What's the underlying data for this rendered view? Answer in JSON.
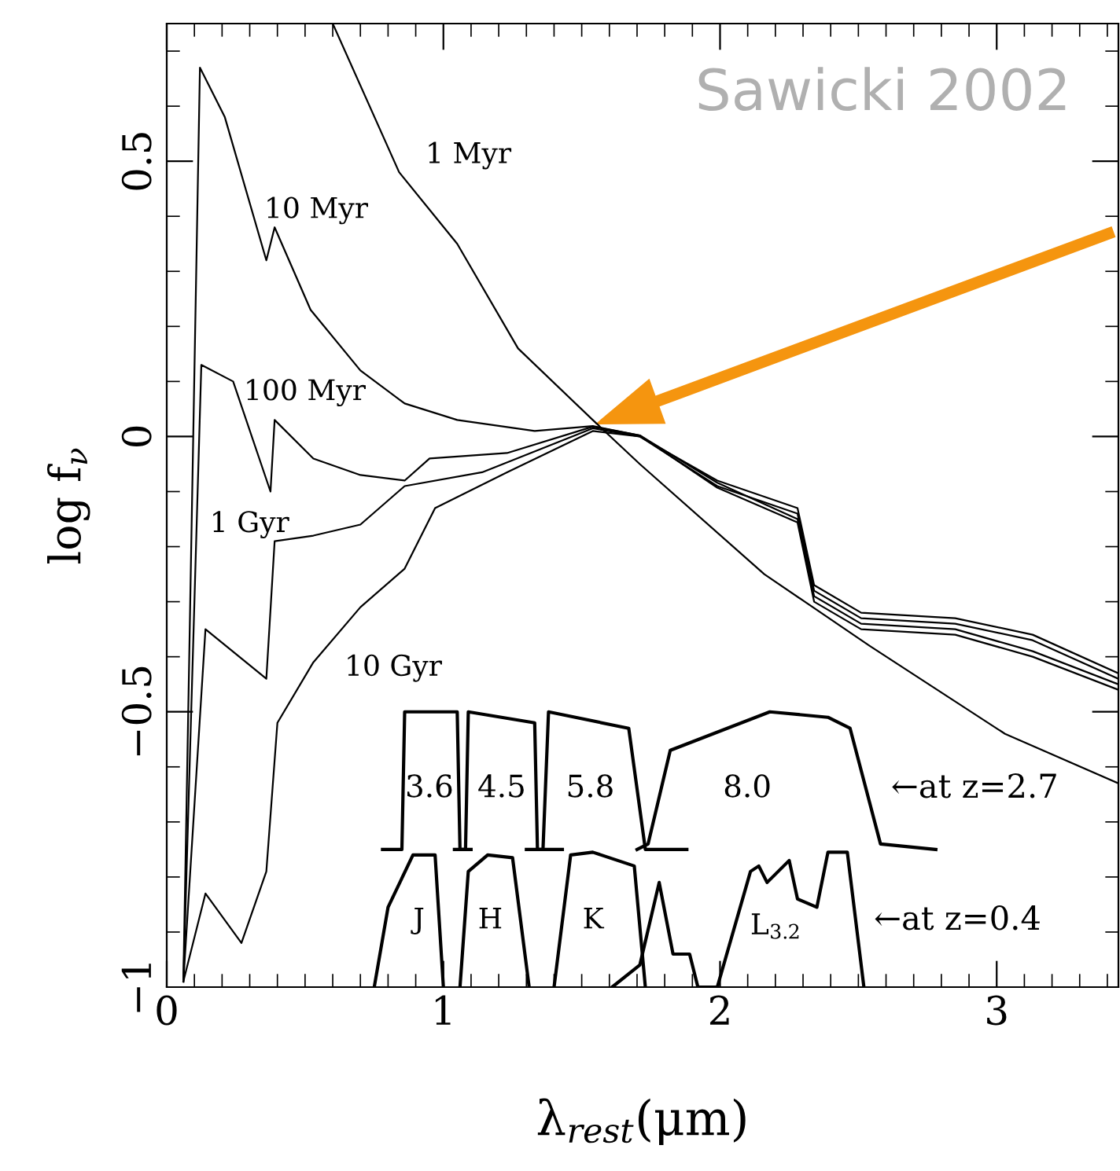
{
  "chart_data": {
    "type": "line",
    "xlabel": "λ$_{rest}$(μm)",
    "ylabel": "log f$_{ν}$",
    "xlim": [
      0,
      3.44
    ],
    "ylim": [
      -1,
      0.75
    ],
    "xticks": [
      0,
      1,
      2,
      3
    ],
    "yticks": [
      {
        "value": -1,
        "label": "−1"
      },
      {
        "value": -0.5,
        "label": "−0.5"
      },
      0,
      0.5
    ],
    "grid": false,
    "marker": "none",
    "line_style": "solid",
    "series": [
      {
        "color": "#000000",
        "x": [
          0.6,
          0.84,
          1.05,
          1.27,
          1.54,
          1.71,
          2.16,
          2.54,
          3.03,
          3.44
        ],
        "values": [
          0.75,
          0.48,
          0.35,
          0.16,
          0.03,
          -0.05,
          -0.25,
          -0.38,
          -0.54,
          -0.63
        ]
      },
      {
        "color": "#000000",
        "x": [
          0.06,
          0.12,
          0.21,
          0.36,
          0.39,
          0.52,
          0.7,
          0.86,
          1.05,
          1.33,
          1.54,
          1.71,
          1.99,
          2.28,
          2.34,
          2.51,
          2.85,
          3.13,
          3.44
        ],
        "values": [
          -0.99,
          0.67,
          0.58,
          0.32,
          0.38,
          0.23,
          0.12,
          0.06,
          0.03,
          0.01,
          0.019,
          0.002,
          -0.093,
          -0.156,
          -0.3,
          -0.35,
          -0.36,
          -0.4,
          -0.46
        ]
      },
      {
        "color": "#000000",
        "x": [
          0.06,
          0.125,
          0.24,
          0.375,
          0.39,
          0.53,
          0.7,
          0.86,
          0.95,
          1.23,
          1.54,
          1.71,
          1.99,
          2.28,
          2.34,
          2.51,
          2.85,
          3.13,
          3.44
        ],
        "values": [
          -0.99,
          0.13,
          0.1,
          -0.1,
          0.03,
          -0.04,
          -0.07,
          -0.08,
          -0.04,
          -0.03,
          0.018,
          0.002,
          -0.084,
          -0.15,
          -0.29,
          -0.34,
          -0.35,
          -0.39,
          -0.45
        ]
      },
      {
        "color": "#000000",
        "x": [
          0.06,
          0.14,
          0.36,
          0.39,
          0.53,
          0.7,
          0.86,
          1.14,
          1.54,
          1.71,
          1.99,
          2.28,
          2.34,
          2.51,
          2.85,
          3.13,
          3.44
        ],
        "values": [
          -0.99,
          -0.35,
          -0.44,
          -0.19,
          -0.18,
          -0.16,
          -0.09,
          -0.065,
          0.015,
          0.0,
          -0.09,
          -0.14,
          -0.28,
          -0.33,
          -0.34,
          -0.37,
          -0.44
        ]
      },
      {
        "color": "#000000",
        "x": [
          0.06,
          0.14,
          0.27,
          0.36,
          0.4,
          0.53,
          0.7,
          0.86,
          0.97,
          1.23,
          1.54,
          1.71,
          1.99,
          2.28,
          2.34,
          2.51,
          2.85,
          3.13,
          3.44
        ],
        "values": [
          -0.99,
          -0.83,
          -0.92,
          -0.79,
          -0.52,
          -0.41,
          -0.31,
          -0.24,
          -0.13,
          -0.065,
          0.01,
          0.0,
          -0.08,
          -0.13,
          -0.27,
          -0.32,
          -0.33,
          -0.36,
          -0.43
        ]
      },
      {
        "color": "#000000",
        "x": [
          0.78,
          0.85,
          0.86,
          1.05,
          1.06,
          1.1
        ],
        "values": [
          -0.75,
          -0.75,
          -0.5,
          -0.5,
          -0.75,
          -0.75
        ]
      },
      {
        "color": "#000000",
        "x": [
          1.04,
          1.08,
          1.09,
          1.33,
          1.34,
          1.43
        ],
        "values": [
          -0.75,
          -0.75,
          -0.5,
          -0.52,
          -0.75,
          -0.75
        ]
      },
      {
        "color": "#000000",
        "x": [
          1.3,
          1.36,
          1.38,
          1.67,
          1.73,
          1.88
        ],
        "values": [
          -0.75,
          -0.75,
          -0.5,
          -0.53,
          -0.75,
          -0.75
        ]
      },
      {
        "color": "#000000",
        "x": [
          1.7,
          1.74,
          1.82,
          2.18,
          2.39,
          2.47,
          2.58,
          2.78
        ],
        "values": [
          -0.75,
          -0.74,
          -0.57,
          -0.5,
          -0.51,
          -0.53,
          -0.74,
          -0.75
        ]
      },
      {
        "color": "#000000",
        "x": [
          0.75,
          0.8,
          0.89,
          0.97,
          1.0
        ],
        "values": [
          -1.0,
          -0.855,
          -0.76,
          -0.76,
          -1.0
        ]
      },
      {
        "color": "#000000",
        "x": [
          1.06,
          1.09,
          1.16,
          1.25,
          1.31
        ],
        "values": [
          -1.0,
          -0.79,
          -0.76,
          -0.765,
          -1.0
        ]
      },
      {
        "color": "#000000",
        "x": [
          1.4,
          1.46,
          1.54,
          1.69,
          1.73
        ],
        "values": [
          -1.0,
          -0.76,
          -0.755,
          -0.78,
          -1.0
        ]
      },
      {
        "color": "#000000",
        "x": [
          1.61,
          1.71,
          1.78,
          1.83,
          1.89,
          1.92,
          1.99,
          2.11,
          2.14,
          2.17,
          2.25,
          2.28,
          2.35,
          2.39,
          2.46,
          2.52
        ],
        "values": [
          -1.0,
          -0.96,
          -0.81,
          -0.94,
          -0.94,
          -1.0,
          -1.0,
          -0.79,
          -0.78,
          -0.81,
          -0.77,
          -0.84,
          -0.855,
          -0.755,
          -0.755,
          -1.0
        ]
      }
    ],
    "annotations": [
      "1 Myr",
      "10 Myr",
      "100 Myr",
      "1 Gyr",
      "10 Gyr",
      "3.6",
      "4.5",
      "5.8",
      "8.0",
      "←at z=2.7",
      "J",
      "H",
      "K",
      "L$_{3.2}$",
      "←at z=0.4",
      "Sawicki 2002"
    ]
  }
}
